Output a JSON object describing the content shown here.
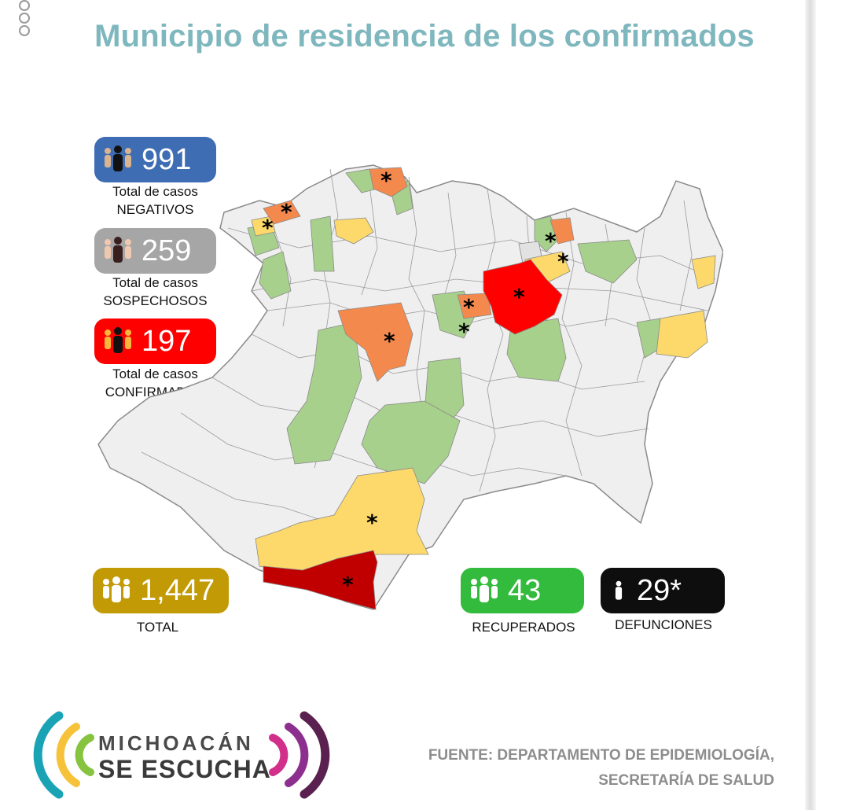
{
  "title": "Municipio de residencia de los confirmados",
  "stats": {
    "negativos": {
      "value": "991",
      "line1": "Total de casos",
      "line2": "NEGATIVOS",
      "color": "#3e6db4"
    },
    "sospechosos": {
      "value": "259",
      "line1": "Total de casos",
      "line2": "SOSPECHOSOS",
      "color": "#a6a6a6"
    },
    "confirmados": {
      "value": "197",
      "line1": "Total de casos",
      "line2": "CONFIRMADOS",
      "color": "#ff0000"
    },
    "total": {
      "value": "1,447",
      "label": "TOTAL",
      "color": "#c19a06"
    },
    "recuperados": {
      "value": "43",
      "label": "RECUPERADOS",
      "color": "#33bb3e"
    },
    "defunciones": {
      "value": "29*",
      "label": "DEFUNCIONES",
      "color": "#0e0e0e"
    }
  },
  "map": {
    "colors": {
      "base": "#efefef",
      "green": "#a7d08c",
      "yellow": "#fdd96b",
      "orange": "#f4894e",
      "red": "#ff0000",
      "darkred": "#c00000",
      "border": "#8a8a8a"
    },
    "death_marker": "*"
  },
  "logo": {
    "line1": "MICHOACÁN",
    "line2": "SE ESCUCHA"
  },
  "source": {
    "line1": "FUENTE: DEPARTAMENTO DE EPIDEMIOLOGÍA,",
    "line2": "SECRETARÍA DE SALUD"
  }
}
